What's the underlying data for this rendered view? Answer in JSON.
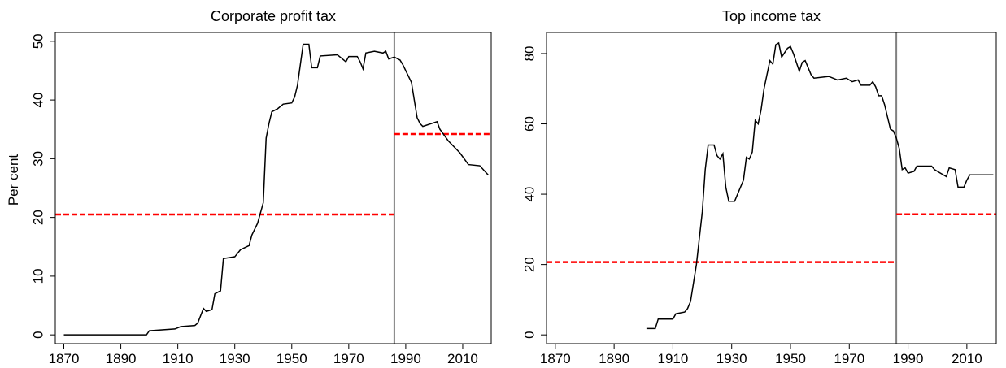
{
  "chart_data": [
    {
      "type": "line",
      "title": "Corporate profit tax",
      "ylabel": "Per cent",
      "x": [
        1870,
        1899,
        1900,
        1909,
        1911,
        1916,
        1917,
        1919,
        1920,
        1922,
        1923,
        1925,
        1926,
        1930,
        1932,
        1935,
        1936,
        1938,
        1940,
        1941,
        1942,
        1943,
        1945,
        1947,
        1950,
        1951,
        1952,
        1953,
        1954,
        1956,
        1957,
        1959,
        1960,
        1966,
        1969,
        1970,
        1973,
        1974,
        1975,
        1976,
        1979,
        1982,
        1983,
        1984,
        1986,
        1988,
        1989,
        1992,
        1993,
        1994,
        1995,
        1996,
        2001,
        2002,
        2005,
        2007,
        2009,
        2012,
        2016,
        2019
      ],
      "series": [
        {
          "color": "#000000",
          "values": [
            0,
            0,
            0.7,
            1,
            1.4,
            1.6,
            2,
            4.5,
            4,
            4.3,
            7,
            7.5,
            13,
            13.3,
            14.5,
            15.2,
            17,
            19,
            22.5,
            33.5,
            36,
            38,
            38.5,
            39.3,
            39.5,
            40.5,
            42.5,
            46,
            49.5,
            49.5,
            45.5,
            45.5,
            47.5,
            47.7,
            46.5,
            47.4,
            47.4,
            46.5,
            45.3,
            48,
            48.3,
            48,
            48.3,
            47,
            47.3,
            46.8,
            46,
            43,
            40,
            37,
            36,
            35.5,
            36.3,
            35,
            33,
            32,
            31,
            29,
            28.8,
            27.2
          ]
        }
      ],
      "xlim": [
        1867,
        2020
      ],
      "xticks": [
        1870,
        1890,
        1910,
        1930,
        1950,
        1970,
        1990,
        2010
      ],
      "ylim": [
        -1.5,
        51.5
      ],
      "yticks": [
        0,
        10,
        20,
        30,
        40,
        50
      ],
      "vline": 1986,
      "vline_color": "#808080",
      "period_means": [
        20.5,
        34.2
      ],
      "mean_color": "#ff0000"
    },
    {
      "type": "line",
      "title": "Top income tax",
      "x": [
        1901,
        1904,
        1905,
        1910,
        1911,
        1914,
        1915,
        1916,
        1918,
        1920,
        1921,
        1922,
        1924,
        1925,
        1926,
        1927,
        1928,
        1929,
        1931,
        1932,
        1934,
        1935,
        1936,
        1937,
        1938,
        1939,
        1940,
        1941,
        1943,
        1944,
        1945,
        1946,
        1947,
        1949,
        1950,
        1951,
        1953,
        1954,
        1955,
        1957,
        1958,
        1963,
        1966,
        1969,
        1971,
        1973,
        1974,
        1977,
        1978,
        1979,
        1980,
        1981,
        1982,
        1983,
        1984,
        1985,
        1986,
        1987,
        1988,
        1989,
        1990,
        1992,
        1993,
        1998,
        1999,
        2001,
        2003,
        2004,
        2006,
        2007,
        2009,
        2010,
        2011,
        2019
      ],
      "series": [
        {
          "color": "#000000",
          "values": [
            1.8,
            1.8,
            4.5,
            4.5,
            6,
            6.5,
            7.5,
            9.5,
            20,
            35,
            47,
            54,
            54,
            51,
            50,
            51.5,
            42,
            38,
            38,
            40,
            44,
            50.5,
            50,
            52,
            61,
            60,
            64,
            70,
            78,
            77,
            82.5,
            83,
            79,
            81.5,
            82,
            80,
            75,
            77.5,
            78,
            74,
            73,
            73.5,
            72.5,
            73,
            72,
            72.5,
            71,
            71,
            72,
            70.5,
            68,
            68,
            65.5,
            62,
            58.5,
            58,
            56,
            53,
            47,
            47.5,
            46,
            46.5,
            48,
            48,
            47,
            46,
            45,
            47.5,
            47,
            42,
            42,
            44,
            45.5,
            45.5
          ]
        }
      ],
      "xlim": [
        1867,
        2020
      ],
      "xticks": [
        1870,
        1890,
        1910,
        1930,
        1950,
        1970,
        1990,
        2010
      ],
      "ylim": [
        -2.5,
        86
      ],
      "yticks": [
        0,
        20,
        40,
        60,
        80
      ],
      "vline": 1986,
      "vline_color": "#808080",
      "period_means": [
        20.7,
        34.3
      ],
      "mean_color": "#ff0000"
    }
  ]
}
